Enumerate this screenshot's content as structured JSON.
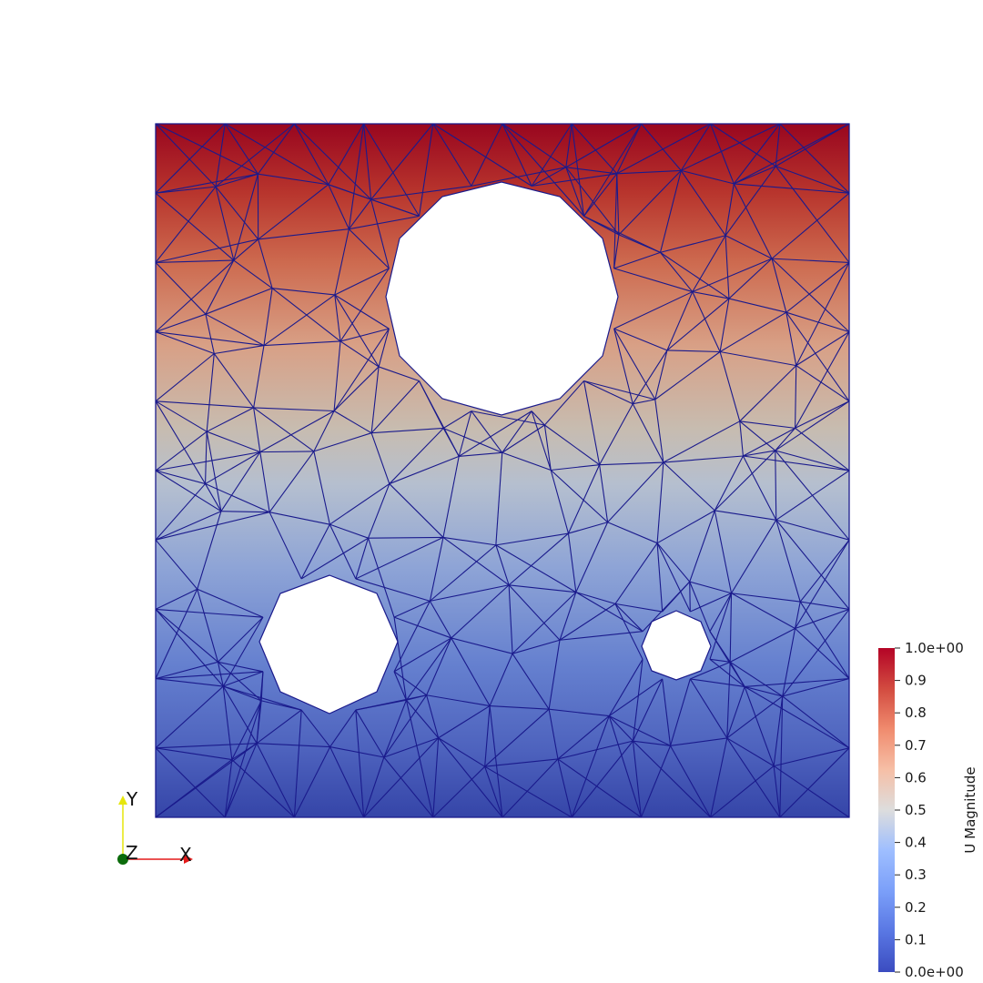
{
  "scalar_bar": {
    "title": "U Magnitude",
    "range": [
      0.0,
      1.0
    ],
    "max_label": "1.0e+00",
    "min_label": "0.0e+00",
    "tick_labels": [
      "0.9",
      "0.8",
      "0.7",
      "0.6",
      "0.5",
      "0.4",
      "0.3",
      "0.2",
      "0.1"
    ],
    "colors": {
      "low": "#3b4cc0",
      "mid": "#dddddd",
      "high": "#b40426"
    }
  },
  "orientation_axes": {
    "y": "Y",
    "z": "Z",
    "x": "X"
  },
  "mesh": {
    "edge_color": "#1a1a8c",
    "background": "#ffffff"
  }
}
